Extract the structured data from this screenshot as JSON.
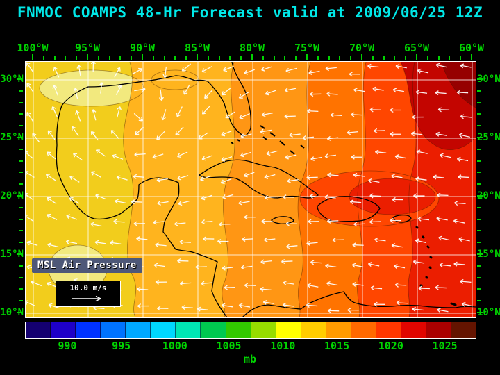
{
  "title": "FNMOC COAMPS 48-Hr Forecast valid at 2009/06/25 12Z",
  "axes": {
    "lon_labels": [
      "100°W",
      "95°W",
      "90°W",
      "85°W",
      "80°W",
      "75°W",
      "70°W",
      "65°W",
      "60°W"
    ],
    "lat_labels": [
      "30°N",
      "25°N",
      "20°N",
      "15°N",
      "10°N"
    ]
  },
  "legend": {
    "field_label": "MSL Air Pressure",
    "wind_reference_label": "10.0 m/s"
  },
  "colorbar": {
    "unit_label": "mb",
    "tick_labels": [
      "990",
      "995",
      "1000",
      "1005",
      "1010",
      "1015",
      "1020",
      "1025"
    ],
    "segment_colors": [
      "#140070",
      "#1e00c8",
      "#0032ff",
      "#0073ff",
      "#00a8ff",
      "#00d8ff",
      "#00e6b4",
      "#00c850",
      "#32c800",
      "#96dc00",
      "#ffff00",
      "#ffcd00",
      "#ff9b00",
      "#ff6900",
      "#ff3700",
      "#e10500",
      "#aa0000",
      "#641400"
    ]
  },
  "map_fill": {
    "band1": "#f2cd1c",
    "band2": "#ffb41e",
    "band3": "#ff9614",
    "band4": "#ff7300",
    "band5": "#ff4600",
    "band6": "#eb1e00",
    "band7": "#c30500",
    "band8": "#960000",
    "light_patch": "#f2e97e"
  },
  "colors": {
    "background": "#000000",
    "title_text": "#00e8e8",
    "axis_text": "#00d400",
    "grid": "#ffffff",
    "coastline": "#000000",
    "wind_arrow": "#ffffff",
    "map_border": "#ffffff"
  }
}
